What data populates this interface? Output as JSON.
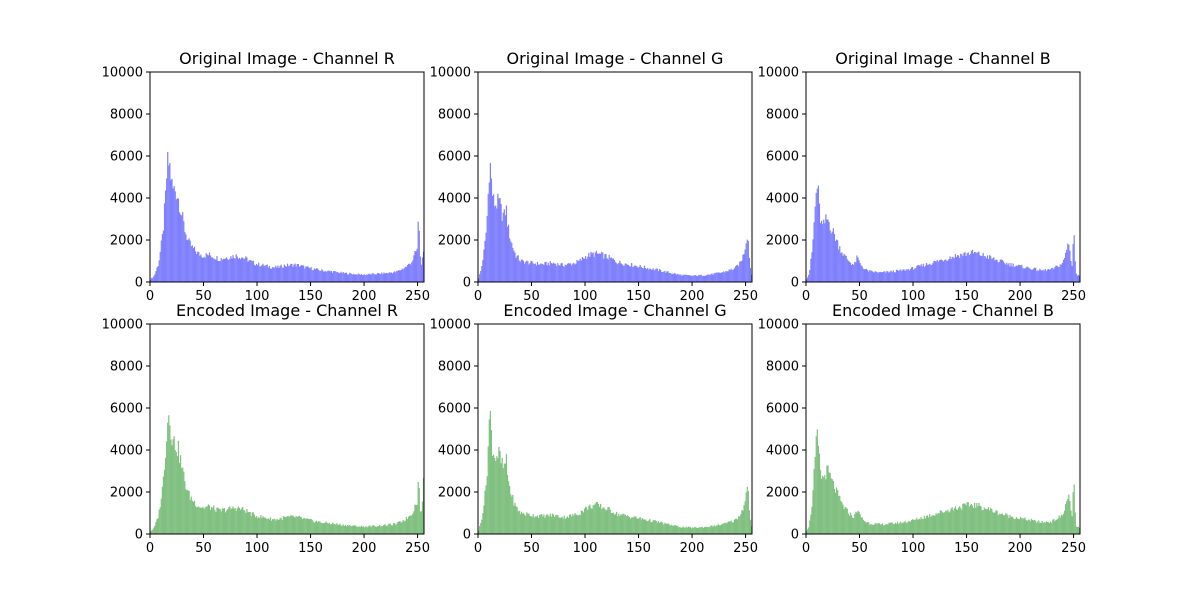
{
  "figure": {
    "background": "#ffffff"
  },
  "chart_data": [
    {
      "type": "histogram",
      "title": "Original Image - Channel R",
      "color": "#8080ff",
      "xlim": [
        0,
        256
      ],
      "ylim": [
        0,
        10000
      ],
      "xticks": [
        0,
        50,
        100,
        150,
        200,
        250
      ],
      "yticks": [
        0,
        2000,
        4000,
        6000,
        8000,
        10000
      ],
      "profile": [
        [
          0,
          100
        ],
        [
          4,
          300
        ],
        [
          8,
          900
        ],
        [
          12,
          2300
        ],
        [
          15,
          4400
        ],
        [
          16,
          5600
        ],
        [
          18,
          5650
        ],
        [
          19,
          5300
        ],
        [
          21,
          4400
        ],
        [
          24,
          4400
        ],
        [
          27,
          3900
        ],
        [
          30,
          3100
        ],
        [
          33,
          2400
        ],
        [
          36,
          1900
        ],
        [
          40,
          1600
        ],
        [
          45,
          1350
        ],
        [
          50,
          1250
        ],
        [
          55,
          1300
        ],
        [
          60,
          1200
        ],
        [
          65,
          1100
        ],
        [
          70,
          1150
        ],
        [
          75,
          1200
        ],
        [
          80,
          1250
        ],
        [
          85,
          1200
        ],
        [
          90,
          1100
        ],
        [
          95,
          950
        ],
        [
          100,
          850
        ],
        [
          105,
          800
        ],
        [
          110,
          750
        ],
        [
          115,
          700
        ],
        [
          120,
          700
        ],
        [
          125,
          780
        ],
        [
          130,
          800
        ],
        [
          135,
          820
        ],
        [
          140,
          780
        ],
        [
          145,
          700
        ],
        [
          150,
          650
        ],
        [
          160,
          550
        ],
        [
          170,
          500
        ],
        [
          180,
          430
        ],
        [
          190,
          380
        ],
        [
          200,
          350
        ],
        [
          210,
          380
        ],
        [
          220,
          420
        ],
        [
          230,
          480
        ],
        [
          235,
          600
        ],
        [
          240,
          750
        ],
        [
          245,
          1000
        ],
        [
          248,
          1400
        ],
        [
          250,
          1600
        ],
        [
          251,
          3800
        ],
        [
          252,
          1300
        ],
        [
          254,
          800
        ],
        [
          255,
          1300
        ],
        [
          256,
          1300
        ]
      ]
    },
    {
      "type": "histogram",
      "title": "Original Image - Channel G",
      "color": "#8080ff",
      "xlim": [
        0,
        256
      ],
      "ylim": [
        0,
        10000
      ],
      "xticks": [
        0,
        50,
        100,
        150,
        200,
        250
      ],
      "yticks": [
        0,
        2000,
        4000,
        6000,
        8000,
        10000
      ],
      "profile": [
        [
          0,
          100
        ],
        [
          3,
          600
        ],
        [
          6,
          1600
        ],
        [
          8,
          2600
        ],
        [
          10,
          4700
        ],
        [
          11,
          6000
        ],
        [
          12,
          5100
        ],
        [
          14,
          3900
        ],
        [
          16,
          3700
        ],
        [
          20,
          3800
        ],
        [
          22,
          3300
        ],
        [
          25,
          3100
        ],
        [
          26,
          3700
        ],
        [
          28,
          2600
        ],
        [
          31,
          1900
        ],
        [
          35,
          1300
        ],
        [
          40,
          1000
        ],
        [
          50,
          900
        ],
        [
          60,
          850
        ],
        [
          70,
          900
        ],
        [
          80,
          800
        ],
        [
          90,
          900
        ],
        [
          95,
          1000
        ],
        [
          100,
          1200
        ],
        [
          105,
          1300
        ],
        [
          110,
          1350
        ],
        [
          115,
          1300
        ],
        [
          120,
          1200
        ],
        [
          125,
          1100
        ],
        [
          130,
          950
        ],
        [
          140,
          850
        ],
        [
          150,
          750
        ],
        [
          160,
          650
        ],
        [
          170,
          550
        ],
        [
          180,
          430
        ],
        [
          190,
          330
        ],
        [
          200,
          300
        ],
        [
          210,
          320
        ],
        [
          220,
          380
        ],
        [
          230,
          480
        ],
        [
          240,
          650
        ],
        [
          245,
          900
        ],
        [
          248,
          1300
        ],
        [
          250,
          1800
        ],
        [
          252,
          2400
        ],
        [
          253,
          1500
        ],
        [
          255,
          400
        ],
        [
          256,
          300
        ]
      ]
    },
    {
      "type": "histogram",
      "title": "Original Image - Channel B",
      "color": "#8080ff",
      "xlim": [
        0,
        256
      ],
      "ylim": [
        0,
        10000
      ],
      "xticks": [
        0,
        50,
        100,
        150,
        200,
        250
      ],
      "yticks": [
        0,
        2000,
        4000,
        6000,
        8000,
        10000
      ],
      "profile": [
        [
          0,
          100
        ],
        [
          3,
          400
        ],
        [
          6,
          1600
        ],
        [
          8,
          3200
        ],
        [
          10,
          4500
        ],
        [
          11,
          4650
        ],
        [
          12,
          3700
        ],
        [
          14,
          2800
        ],
        [
          16,
          2600
        ],
        [
          18,
          2900
        ],
        [
          20,
          3000
        ],
        [
          22,
          2800
        ],
        [
          24,
          2500
        ],
        [
          27,
          2200
        ],
        [
          30,
          1800
        ],
        [
          35,
          1300
        ],
        [
          40,
          1000
        ],
        [
          45,
          800
        ],
        [
          48,
          1200
        ],
        [
          50,
          900
        ],
        [
          55,
          600
        ],
        [
          60,
          500
        ],
        [
          70,
          450
        ],
        [
          80,
          500
        ],
        [
          90,
          550
        ],
        [
          100,
          650
        ],
        [
          110,
          800
        ],
        [
          120,
          950
        ],
        [
          130,
          1100
        ],
        [
          140,
          1250
        ],
        [
          150,
          1350
        ],
        [
          155,
          1400
        ],
        [
          160,
          1350
        ],
        [
          170,
          1200
        ],
        [
          180,
          1000
        ],
        [
          190,
          850
        ],
        [
          200,
          750
        ],
        [
          210,
          650
        ],
        [
          220,
          550
        ],
        [
          230,
          600
        ],
        [
          240,
          900
        ],
        [
          244,
          1600
        ],
        [
          245,
          2100
        ],
        [
          247,
          1200
        ],
        [
          249,
          700
        ],
        [
          250,
          2900
        ],
        [
          251,
          1600
        ],
        [
          252,
          400
        ],
        [
          254,
          300
        ],
        [
          256,
          300
        ]
      ]
    },
    {
      "type": "histogram",
      "title": "Encoded Image - Channel R",
      "color": "#80c080",
      "xlim": [
        0,
        256
      ],
      "ylim": [
        0,
        10000
      ],
      "xticks": [
        0,
        50,
        100,
        150,
        200,
        250
      ],
      "yticks": [
        0,
        2000,
        4000,
        6000,
        8000,
        10000
      ],
      "profile": [
        [
          0,
          100
        ],
        [
          4,
          300
        ],
        [
          8,
          900
        ],
        [
          12,
          2300
        ],
        [
          15,
          4400
        ],
        [
          16,
          5100
        ],
        [
          18,
          5950
        ],
        [
          19,
          5300
        ],
        [
          21,
          4400
        ],
        [
          24,
          4300
        ],
        [
          27,
          3900
        ],
        [
          30,
          3100
        ],
        [
          33,
          2400
        ],
        [
          36,
          1900
        ],
        [
          40,
          1600
        ],
        [
          45,
          1350
        ],
        [
          50,
          1250
        ],
        [
          55,
          1300
        ],
        [
          60,
          1200
        ],
        [
          65,
          1100
        ],
        [
          70,
          1150
        ],
        [
          75,
          1200
        ],
        [
          80,
          1250
        ],
        [
          85,
          1200
        ],
        [
          90,
          1100
        ],
        [
          95,
          950
        ],
        [
          100,
          850
        ],
        [
          105,
          800
        ],
        [
          110,
          750
        ],
        [
          115,
          700
        ],
        [
          120,
          700
        ],
        [
          125,
          780
        ],
        [
          130,
          800
        ],
        [
          135,
          820
        ],
        [
          140,
          780
        ],
        [
          145,
          700
        ],
        [
          150,
          650
        ],
        [
          160,
          550
        ],
        [
          170,
          500
        ],
        [
          180,
          430
        ],
        [
          190,
          380
        ],
        [
          200,
          350
        ],
        [
          210,
          380
        ],
        [
          220,
          420
        ],
        [
          230,
          480
        ],
        [
          235,
          600
        ],
        [
          240,
          750
        ],
        [
          245,
          1000
        ],
        [
          248,
          1400
        ],
        [
          250,
          1600
        ],
        [
          251,
          3050
        ],
        [
          252,
          1300
        ],
        [
          254,
          900
        ],
        [
          255,
          2400
        ],
        [
          256,
          2400
        ]
      ]
    },
    {
      "type": "histogram",
      "title": "Encoded Image - Channel G",
      "color": "#80c080",
      "xlim": [
        0,
        256
      ],
      "ylim": [
        0,
        10000
      ],
      "xticks": [
        0,
        50,
        100,
        150,
        200,
        250
      ],
      "yticks": [
        0,
        2000,
        4000,
        6000,
        8000,
        10000
      ],
      "profile": [
        [
          0,
          100
        ],
        [
          3,
          600
        ],
        [
          6,
          1600
        ],
        [
          8,
          2600
        ],
        [
          10,
          4700
        ],
        [
          11,
          6000
        ],
        [
          12,
          5100
        ],
        [
          14,
          3900
        ],
        [
          16,
          3700
        ],
        [
          20,
          3800
        ],
        [
          22,
          3300
        ],
        [
          25,
          3100
        ],
        [
          26,
          3700
        ],
        [
          28,
          2600
        ],
        [
          31,
          1900
        ],
        [
          35,
          1300
        ],
        [
          40,
          1000
        ],
        [
          50,
          900
        ],
        [
          60,
          850
        ],
        [
          70,
          900
        ],
        [
          80,
          800
        ],
        [
          90,
          900
        ],
        [
          95,
          1000
        ],
        [
          100,
          1200
        ],
        [
          105,
          1300
        ],
        [
          110,
          1400
        ],
        [
          115,
          1300
        ],
        [
          120,
          1200
        ],
        [
          125,
          1100
        ],
        [
          130,
          950
        ],
        [
          140,
          850
        ],
        [
          150,
          750
        ],
        [
          160,
          650
        ],
        [
          170,
          550
        ],
        [
          180,
          430
        ],
        [
          190,
          330
        ],
        [
          200,
          300
        ],
        [
          210,
          320
        ],
        [
          220,
          380
        ],
        [
          230,
          480
        ],
        [
          240,
          650
        ],
        [
          245,
          900
        ],
        [
          248,
          1300
        ],
        [
          250,
          1800
        ],
        [
          252,
          2300
        ],
        [
          253,
          1500
        ],
        [
          255,
          400
        ],
        [
          256,
          300
        ]
      ]
    },
    {
      "type": "histogram",
      "title": "Encoded Image - Channel B",
      "color": "#80c080",
      "xlim": [
        0,
        256
      ],
      "ylim": [
        0,
        10000
      ],
      "xticks": [
        0,
        50,
        100,
        150,
        200,
        250
      ],
      "yticks": [
        0,
        2000,
        4000,
        6000,
        8000,
        10000
      ],
      "profile": [
        [
          0,
          100
        ],
        [
          3,
          400
        ],
        [
          6,
          1600
        ],
        [
          8,
          3200
        ],
        [
          10,
          4500
        ],
        [
          11,
          4650
        ],
        [
          12,
          3700
        ],
        [
          14,
          2800
        ],
        [
          16,
          2600
        ],
        [
          18,
          2900
        ],
        [
          20,
          3000
        ],
        [
          22,
          2800
        ],
        [
          24,
          2500
        ],
        [
          27,
          2200
        ],
        [
          30,
          1800
        ],
        [
          35,
          1300
        ],
        [
          40,
          1000
        ],
        [
          45,
          800
        ],
        [
          48,
          1200
        ],
        [
          50,
          900
        ],
        [
          55,
          600
        ],
        [
          60,
          500
        ],
        [
          70,
          450
        ],
        [
          80,
          500
        ],
        [
          90,
          550
        ],
        [
          100,
          650
        ],
        [
          110,
          800
        ],
        [
          120,
          950
        ],
        [
          130,
          1100
        ],
        [
          140,
          1250
        ],
        [
          150,
          1350
        ],
        [
          155,
          1400
        ],
        [
          160,
          1350
        ],
        [
          170,
          1200
        ],
        [
          180,
          1000
        ],
        [
          190,
          850
        ],
        [
          200,
          750
        ],
        [
          210,
          650
        ],
        [
          220,
          550
        ],
        [
          230,
          600
        ],
        [
          240,
          900
        ],
        [
          244,
          1600
        ],
        [
          245,
          2100
        ],
        [
          247,
          1200
        ],
        [
          249,
          700
        ],
        [
          250,
          2900
        ],
        [
          251,
          1600
        ],
        [
          252,
          400
        ],
        [
          254,
          300
        ],
        [
          256,
          300
        ]
      ]
    }
  ]
}
